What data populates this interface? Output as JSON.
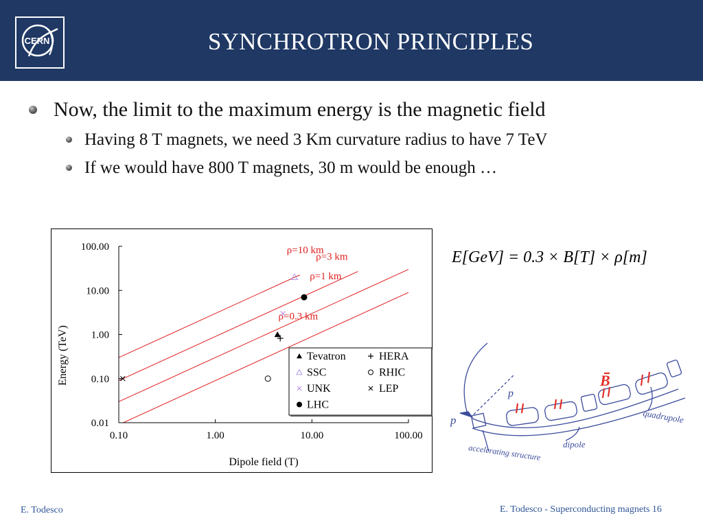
{
  "header": {
    "title": "SYNCHROTRON PRINCIPLES",
    "logo_text": "CERN",
    "background": "#1f3864"
  },
  "bullets": [
    "Now, the limit to the maximum energy is the magnetic field",
    "Having 8 T magnets, we need 3 Km curvature radius to have 7 TeV",
    "If we would have 800 T magnets, 30 m would be enough …"
  ],
  "formula": {
    "left": "E[GeV] = 0.3 × B[T] × ρ[m]"
  },
  "sketch": {
    "labels": [
      "p",
      "p",
      "B",
      "quadrupole",
      "accelerating structure",
      "dipole"
    ]
  },
  "chart_data": {
    "type": "scatter",
    "xlabel": "Dipole field (T)",
    "ylabel": "Energy (TeV)",
    "x_scale": "log",
    "y_scale": "log",
    "xlim": [
      0.1,
      100
    ],
    "ylim": [
      0.01,
      100
    ],
    "x_ticks": [
      "0.10",
      "1.00",
      "10.00",
      "100.00"
    ],
    "y_ticks": [
      "0.01",
      "0.10",
      "1.00",
      "10.00",
      "100.00"
    ],
    "grid": false,
    "legend_position": "bottom-right",
    "lines": [
      {
        "name": "ρ=10 km",
        "radius_km": 10,
        "x_range": [
          0.1,
          7.5
        ],
        "label_at": [
          5.5,
          70
        ],
        "color": "#e02020"
      },
      {
        "name": "ρ=3 km",
        "radius_km": 3,
        "x_range": [
          0.1,
          30
        ],
        "label_at": [
          11,
          50
        ],
        "color": "#e02020"
      },
      {
        "name": "ρ=1 km",
        "radius_km": 1,
        "x_range": [
          0.1,
          100
        ],
        "label_at": [
          9.5,
          18
        ],
        "color": "#e02020"
      },
      {
        "name": "ρ=0.3 km",
        "radius_km": 0.3,
        "x_range": [
          0.1,
          100
        ],
        "label_at": [
          4.5,
          2.2
        ],
        "color": "#e02020"
      }
    ],
    "series": [
      {
        "name": "Tevatron",
        "marker": "triangle",
        "color": "#000000",
        "x": 4.4,
        "y": 1.0
      },
      {
        "name": "HERA",
        "marker": "plus",
        "color": "#000000",
        "x": 4.7,
        "y": 0.82
      },
      {
        "name": "SSC",
        "marker": "triangle-open",
        "color": "#b497e8",
        "x": 6.6,
        "y": 20
      },
      {
        "name": "RHIC",
        "marker": "circle-open",
        "color": "#000000",
        "x": 3.5,
        "y": 0.1
      },
      {
        "name": "UNK",
        "marker": "x",
        "color": "#b78de0",
        "x": 5.0,
        "y": 3.0
      },
      {
        "name": "LEP",
        "marker": "x",
        "color": "#000000",
        "x": 0.11,
        "y": 0.1
      },
      {
        "name": "LHC",
        "marker": "circle",
        "color": "#000000",
        "x": 8.3,
        "y": 7.0
      }
    ]
  },
  "footer": {
    "left": "E. Todesco",
    "right": "E. Todesco - Superconducting magnets 16"
  },
  "colors": {
    "header": "#1f3864",
    "footer_text": "#2f5597",
    "rho_lines": "#e02020"
  }
}
